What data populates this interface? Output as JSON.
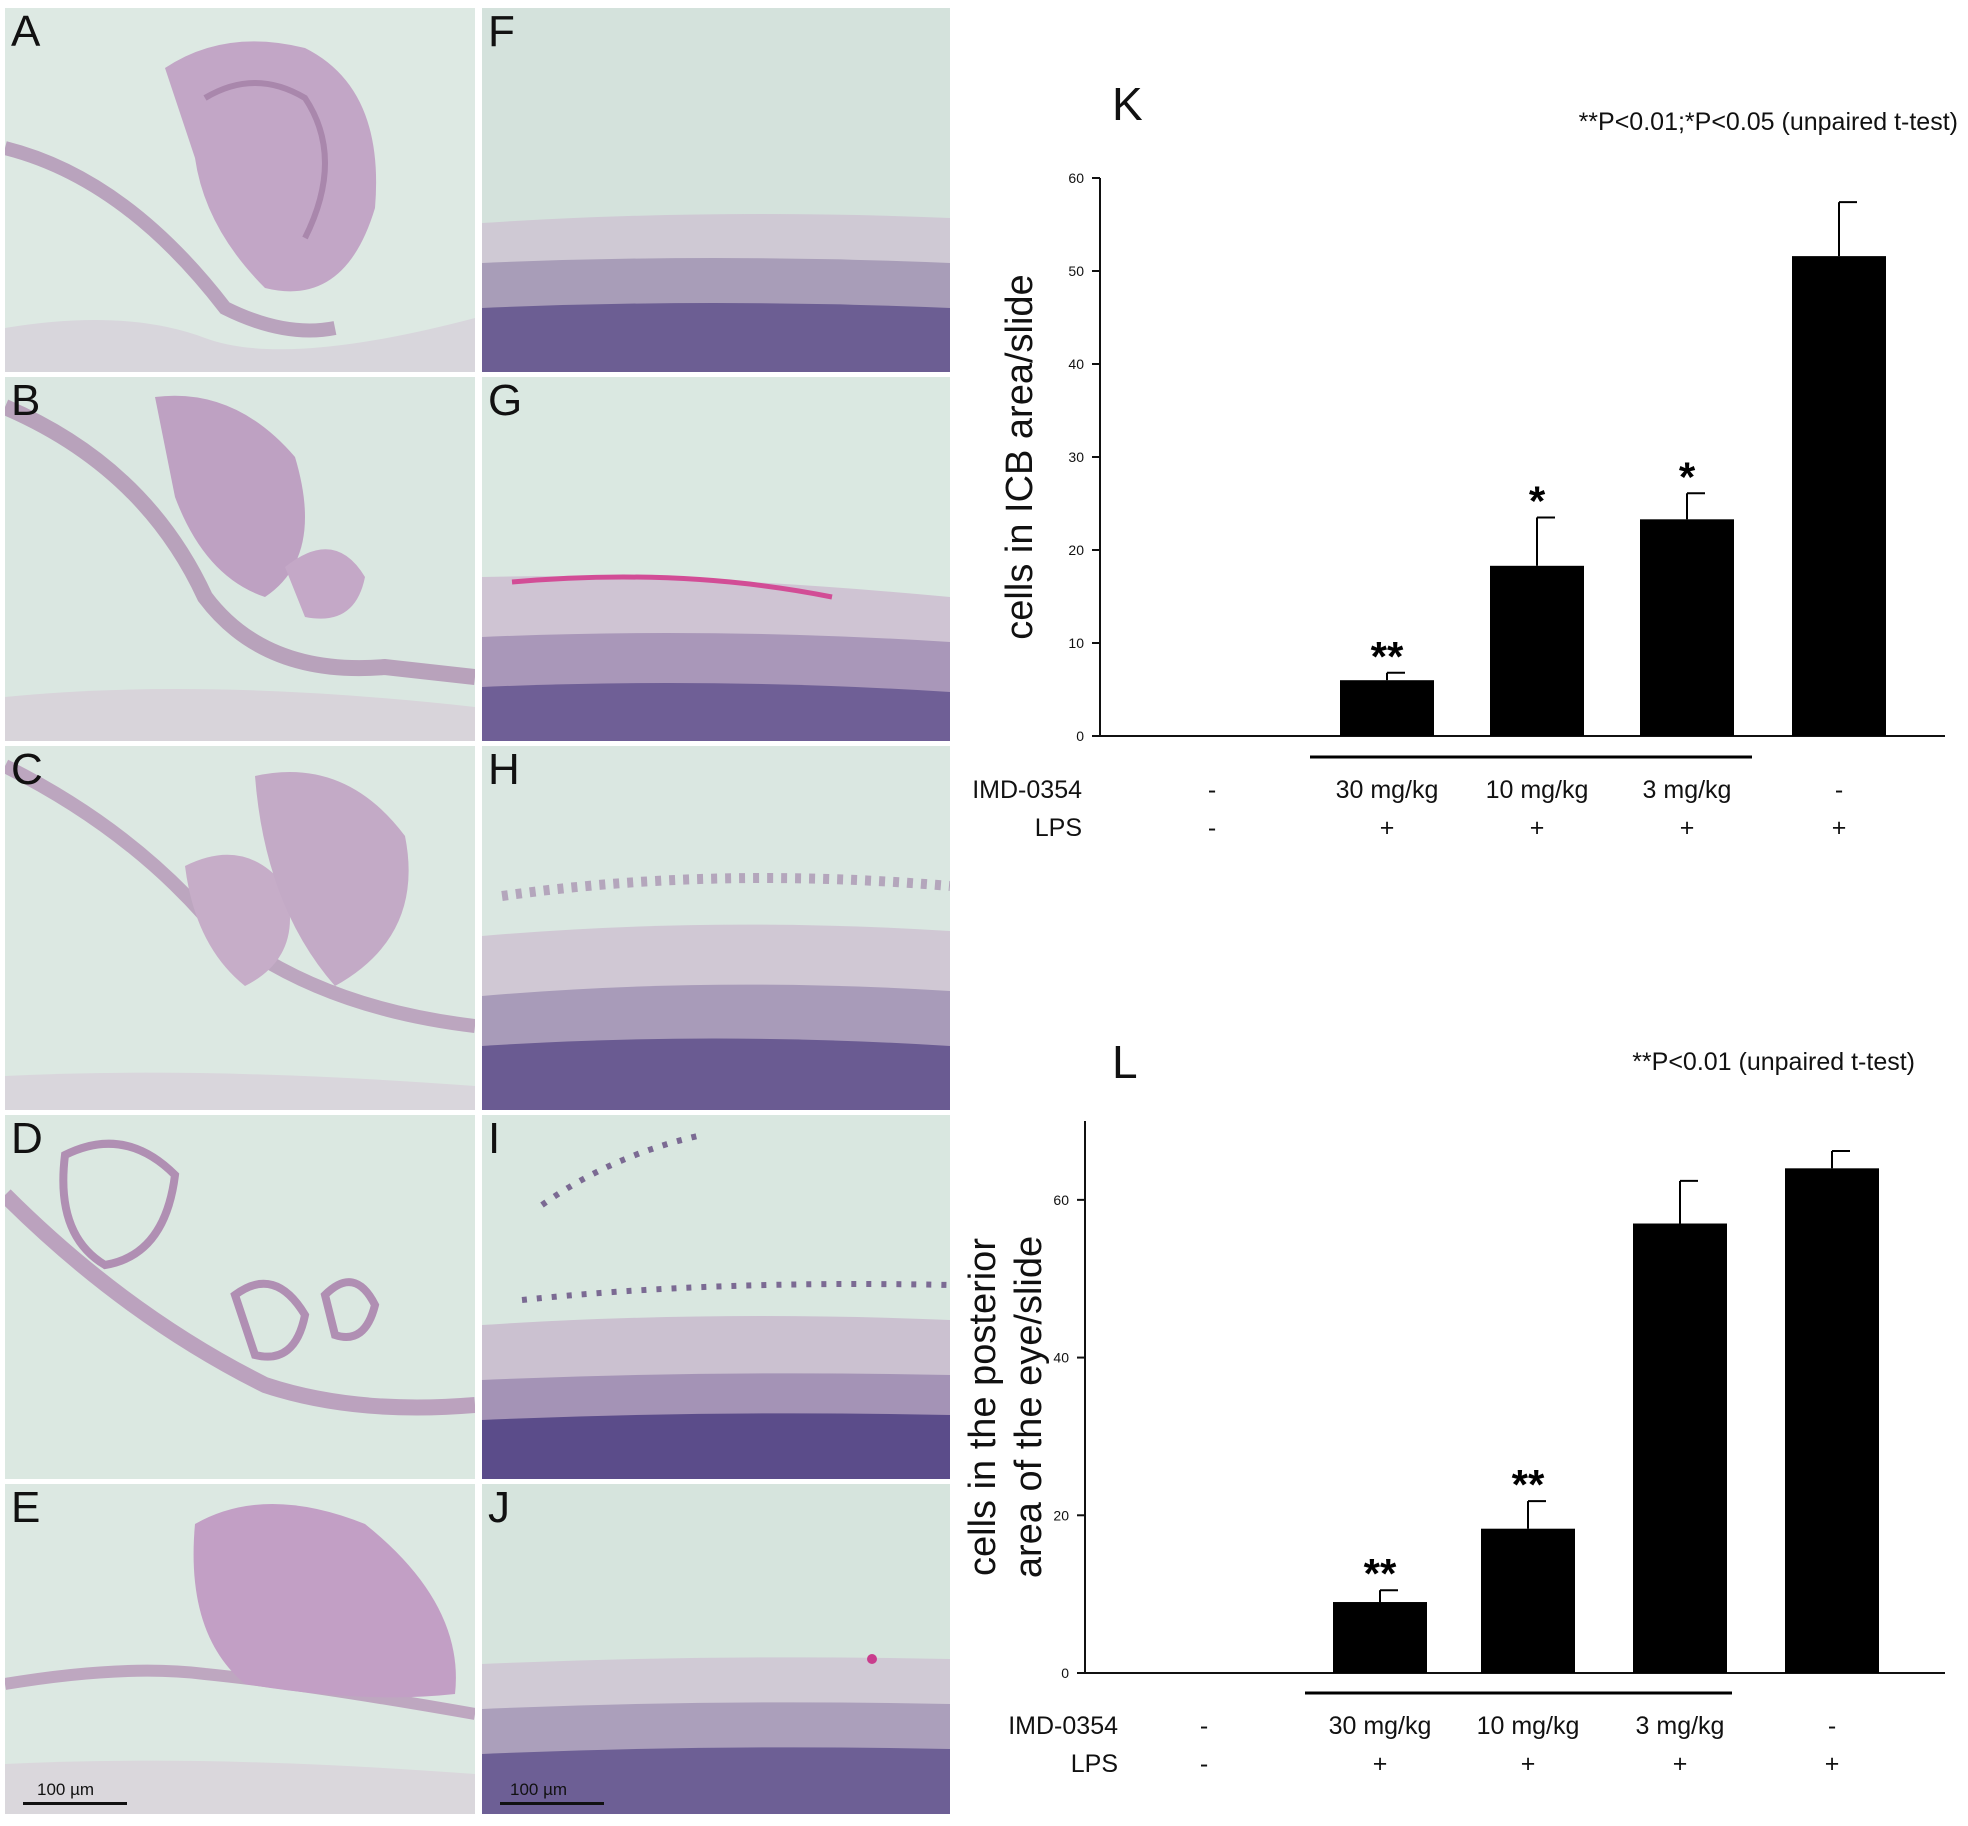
{
  "micrographs": {
    "left_column": [
      "A",
      "B",
      "C",
      "D",
      "E"
    ],
    "right_column": [
      "F",
      "G",
      "H",
      "I",
      "J"
    ],
    "scale_bar_left": "100 µm",
    "scale_bar_right": "100 µm"
  },
  "chart_data": [
    {
      "type": "bar",
      "panel_label": "K",
      "significance_note": "**P<0.01;*P<0.05 (unpaired t-test)",
      "ylabel": "cells in ICB area/slide",
      "ylim": [
        0,
        60
      ],
      "yticks": [
        0,
        10,
        20,
        30,
        40,
        50,
        60
      ],
      "row_labels": [
        "IMD-0354",
        "LPS"
      ],
      "groups": [
        {
          "imd": "-",
          "lps": "-",
          "value": 0,
          "error": 0,
          "sig": ""
        },
        {
          "imd": "30 mg/kg",
          "lps": "+",
          "value": 6,
          "error": 0.8,
          "sig": "**"
        },
        {
          "imd": "10 mg/kg",
          "lps": "+",
          "value": 18.3,
          "error": 5.2,
          "sig": "*"
        },
        {
          "imd": "3 mg/kg",
          "lps": "+",
          "value": 23.3,
          "error": 2.8,
          "sig": "*"
        },
        {
          "imd": "-",
          "lps": "+",
          "value": 51.6,
          "error": 5.8,
          "sig": ""
        }
      ]
    },
    {
      "type": "bar",
      "panel_label": "L",
      "significance_note": "**P<0.01 (unpaired t-test)",
      "ylabel_lines": [
        "cells in the posterior",
        "area of the eye/slide"
      ],
      "ylim": [
        0,
        70
      ],
      "yticks": [
        0,
        20,
        40,
        60
      ],
      "row_labels": [
        "IMD-0354",
        "LPS"
      ],
      "groups": [
        {
          "imd": "-",
          "lps": "-",
          "value": 0,
          "error": 0,
          "sig": ""
        },
        {
          "imd": "30 mg/kg",
          "lps": "+",
          "value": 9,
          "error": 1.5,
          "sig": "**"
        },
        {
          "imd": "10 mg/kg",
          "lps": "+",
          "value": 18.3,
          "error": 3.5,
          "sig": "**"
        },
        {
          "imd": "3 mg/kg",
          "lps": "+",
          "value": 57,
          "error": 5.4,
          "sig": ""
        },
        {
          "imd": "-",
          "lps": "+",
          "value": 64,
          "error": 2.2,
          "sig": ""
        }
      ]
    }
  ]
}
